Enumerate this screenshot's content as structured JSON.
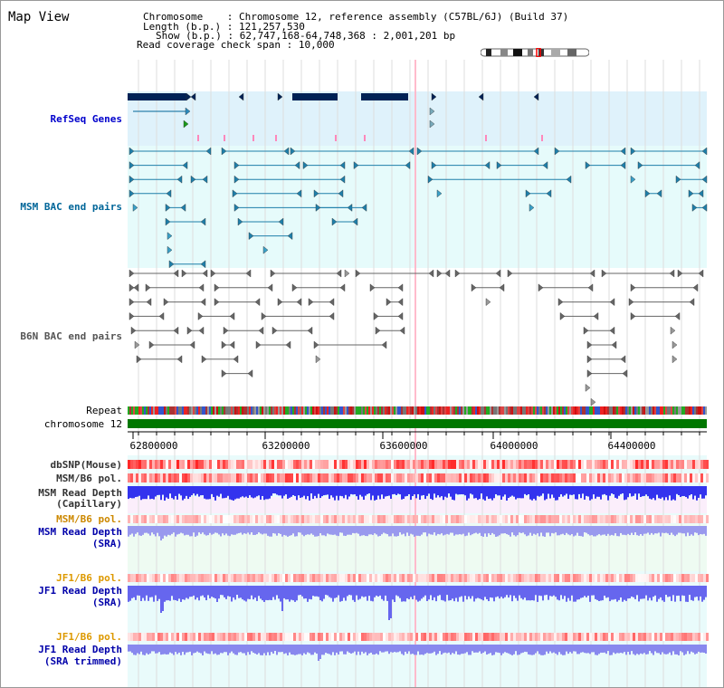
{
  "app": {
    "title": "Map View"
  },
  "info": {
    "chromosome_key": "Chromosome",
    "chromosome_value": "Chromosome 12, reference assembly (C57BL/6J) (Build 37)",
    "length_key": "Length (b.p.)",
    "length_value": "121,257,530",
    "show_key": "Show (b.p.)",
    "show_value": "62,747,168-64,748,368 : 2,001,201 bp",
    "coverage_key": "Read coverage check span",
    "coverage_value": "10,000"
  },
  "tracks": {
    "refseq": {
      "label": "RefSeq Genes",
      "color": "#0000cc"
    },
    "msm_bac": {
      "label": "MSM BAC end pairs",
      "color": "#006699"
    },
    "b6n_bac": {
      "label": "B6N BAC end pairs",
      "color": "#555555"
    },
    "repeat": {
      "label": "Repeat"
    },
    "chromosome": {
      "label": "chromosome 12"
    },
    "dbsnp": {
      "label": "dbSNP(Mouse)"
    },
    "msm_b6_pol": {
      "label": "MSM/B6 pol."
    },
    "msm_depth_cap": {
      "label_1": "MSM Read Depth",
      "label_2": "(Capillary)"
    },
    "msm_b6_pol_2": {
      "label": "MSM/B6 pol.",
      "color": "#cc8800"
    },
    "msm_depth_sra": {
      "label_1": "MSM Read Depth",
      "label_2": "(SRA)",
      "color": "#0000aa"
    },
    "jf1_b6_pol": {
      "label": "JF1/B6 pol.",
      "color": "#dd9900"
    },
    "jf1_depth_sra": {
      "label_1": "JF1 Read Depth",
      "label_2": "(SRA)",
      "color": "#0000aa"
    },
    "jf1_b6_pol_2": {
      "label": "JF1/B6 pol.",
      "color": "#dd9900"
    },
    "jf1_depth_trim": {
      "label_1": "JF1 Read Depth",
      "label_2": "(SRA trimmed)",
      "color": "#0000aa"
    }
  },
  "axis": {
    "ticks": [
      "62800000",
      "63200000",
      "63600000",
      "64000000",
      "64400000"
    ]
  },
  "colors": {
    "refseq_bg": "#dff2fb",
    "msm_bac_bg": "#e6fbfb",
    "gene_dark": "#002255",
    "chromosome_bar": "#007700",
    "depth_blue": "#3333ee",
    "depth_light": "#9999ee",
    "grid": "#dddddd",
    "highlight": "#ffbbcc"
  }
}
